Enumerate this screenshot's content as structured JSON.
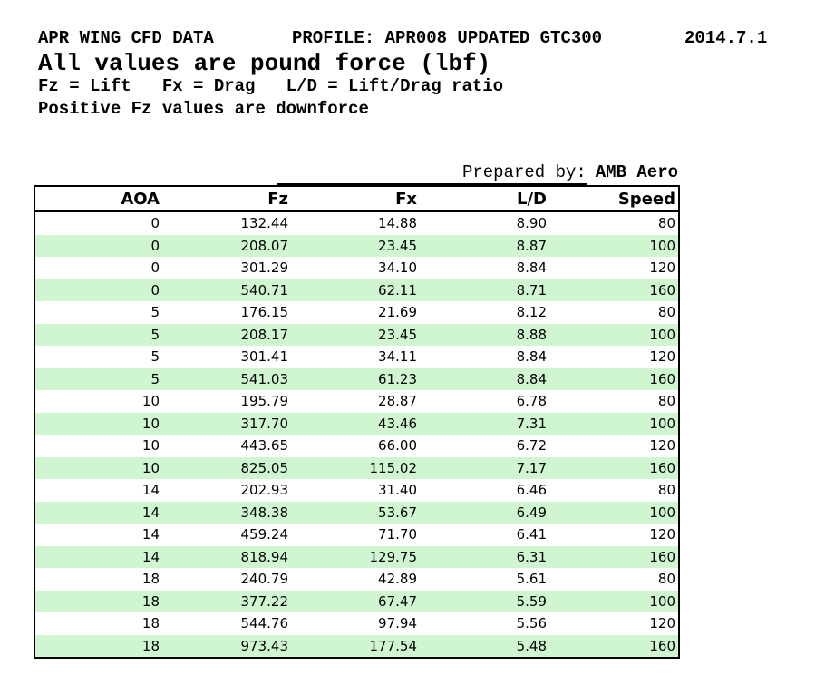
{
  "header": {
    "title": "APR WING CFD DATA",
    "profile": "PROFILE: APR008 UPDATED GTC300",
    "date": "2014.7.1",
    "subtitle": "All values are pound force (lbf)",
    "legend": "Fz = Lift   Fx = Drag   L/D = Lift/Drag ratio",
    "note": "Positive Fz values are downforce"
  },
  "prepared_by": {
    "label": "Prepared by:",
    "value": "AMB Aero"
  },
  "table": {
    "columns": [
      "AOA",
      "Fz",
      "Fx",
      "L/D",
      "Speed"
    ],
    "rows": [
      [
        "0",
        "132.44",
        "14.88",
        "8.90",
        "80"
      ],
      [
        "0",
        "208.07",
        "23.45",
        "8.87",
        "100"
      ],
      [
        "0",
        "301.29",
        "34.10",
        "8.84",
        "120"
      ],
      [
        "0",
        "540.71",
        "62.11",
        "8.71",
        "160"
      ],
      [
        "5",
        "176.15",
        "21.69",
        "8.12",
        "80"
      ],
      [
        "5",
        "208.17",
        "23.45",
        "8.88",
        "100"
      ],
      [
        "5",
        "301.41",
        "34.11",
        "8.84",
        "120"
      ],
      [
        "5",
        "541.03",
        "61.23",
        "8.84",
        "160"
      ],
      [
        "10",
        "195.79",
        "28.87",
        "6.78",
        "80"
      ],
      [
        "10",
        "317.70",
        "43.46",
        "7.31",
        "100"
      ],
      [
        "10",
        "443.65",
        "66.00",
        "6.72",
        "120"
      ],
      [
        "10",
        "825.05",
        "115.02",
        "7.17",
        "160"
      ],
      [
        "14",
        "202.93",
        "31.40",
        "6.46",
        "80"
      ],
      [
        "14",
        "348.38",
        "53.67",
        "6.49",
        "100"
      ],
      [
        "14",
        "459.24",
        "71.70",
        "6.41",
        "120"
      ],
      [
        "14",
        "818.94",
        "129.75",
        "6.31",
        "160"
      ],
      [
        "18",
        "240.79",
        "42.89",
        "5.61",
        "80"
      ],
      [
        "18",
        "377.22",
        "67.47",
        "5.59",
        "100"
      ],
      [
        "18",
        "544.76",
        "97.94",
        "5.56",
        "120"
      ],
      [
        "18",
        "973.43",
        "177.54",
        "5.48",
        "160"
      ]
    ]
  },
  "colors": {
    "row_stripe": "#cff6d0",
    "border": "#000000",
    "text": "#000000"
  }
}
